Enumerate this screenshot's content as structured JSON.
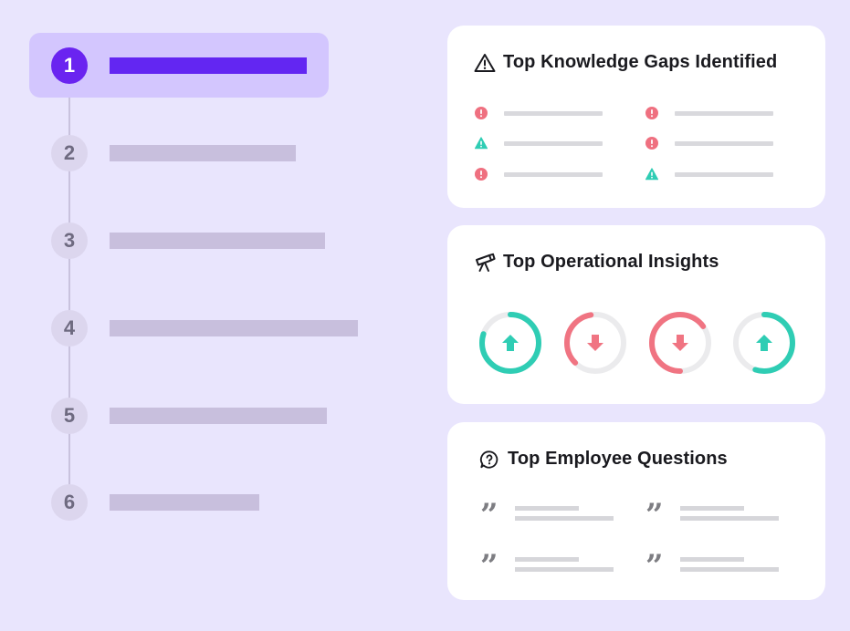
{
  "stepper": {
    "steps": [
      {
        "number": "1",
        "active": true
      },
      {
        "number": "2",
        "active": false
      },
      {
        "number": "3",
        "active": false
      },
      {
        "number": "4",
        "active": false
      },
      {
        "number": "5",
        "active": false
      },
      {
        "number": "6",
        "active": false
      }
    ]
  },
  "cards": {
    "knowledge_gaps": {
      "title": "Top Knowledge Gaps Identified",
      "icon": "warning-triangle-icon",
      "items": [
        {
          "icon": "error-circle-icon",
          "color": "#ef7080"
        },
        {
          "icon": "warning-triangle-icon",
          "color": "#2fcdb4"
        },
        {
          "icon": "error-circle-icon",
          "color": "#ef7080"
        },
        {
          "icon": "error-circle-icon",
          "color": "#ef7080"
        },
        {
          "icon": "error-circle-icon",
          "color": "#ef7080"
        },
        {
          "icon": "warning-triangle-icon",
          "color": "#2fcdb4"
        }
      ]
    },
    "operational_insights": {
      "title": "Top Operational Insights",
      "icon": "telescope-icon",
      "rings": [
        {
          "direction": "up",
          "color": "#2fcdb4",
          "fill": 0.8
        },
        {
          "direction": "down",
          "color": "#f07482",
          "fill": 0.35
        },
        {
          "direction": "down",
          "color": "#f07482",
          "fill": 0.65
        },
        {
          "direction": "up",
          "color": "#2fcdb4",
          "fill": 0.55
        }
      ]
    },
    "employee_questions": {
      "title": "Top Employee Questions",
      "icon": "question-bubble-icon",
      "items": [
        {
          "icon": "quote-icon"
        },
        {
          "icon": "quote-icon"
        },
        {
          "icon": "quote-icon"
        },
        {
          "icon": "quote-icon"
        }
      ]
    }
  },
  "colors": {
    "background": "#e9e5fd",
    "accent": "#6326f2",
    "active_step_bg": "#d3c6fe",
    "positive": "#2fcdb4",
    "negative": "#f07482"
  }
}
